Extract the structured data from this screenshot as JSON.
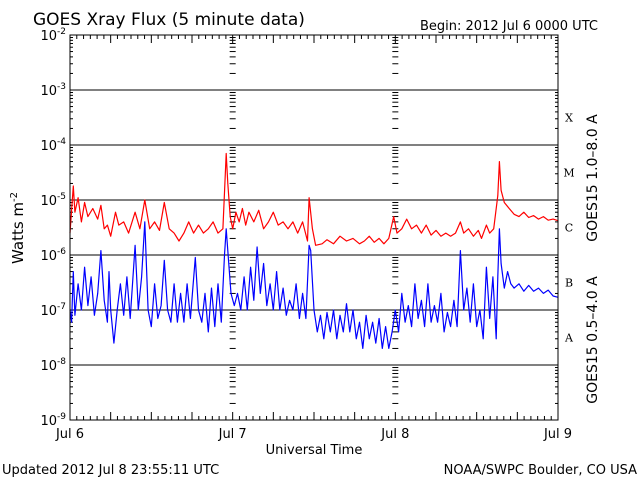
{
  "chart_data": {
    "type": "line",
    "title": "GOES Xray Flux (5 minute data)",
    "begin_label": "Begin:  2012 Jul 6 0000 UTC",
    "xlabel": "Universal Time",
    "ylabel_main": "Watts m",
    "ylabel_exp": "-2",
    "y_scale": "log",
    "ylim_exp": [
      -9,
      -2
    ],
    "y_tick_exps": [
      "-2",
      "-3",
      "-4",
      "-5",
      "-6",
      "-7",
      "-8",
      "-9"
    ],
    "x_range_days": [
      0,
      3
    ],
    "x_ticks": [
      "Jul 6",
      "Jul 7",
      "Jul 8",
      "Jul 9"
    ],
    "grid_lines_exp": [
      -3,
      -4,
      -5,
      -6,
      -7,
      -8
    ],
    "flare_classes": [
      "X",
      "M",
      "C",
      "B",
      "A"
    ],
    "updated": "Updated 2012 Jul  8 23:55:11 UTC",
    "source": "NOAA/SWPC Boulder, CO USA",
    "series": [
      {
        "name": "GOES15 1.0–8.0 A",
        "color": "#ff0000",
        "points": [
          [
            0.0,
            2.5e-06
          ],
          [
            0.02,
            1.8e-05
          ],
          [
            0.03,
            6e-06
          ],
          [
            0.05,
            1.1e-05
          ],
          [
            0.07,
            4e-06
          ],
          [
            0.09,
            9e-06
          ],
          [
            0.11,
            5e-06
          ],
          [
            0.14,
            7e-06
          ],
          [
            0.17,
            4.5e-06
          ],
          [
            0.19,
            8e-06
          ],
          [
            0.21,
            3e-06
          ],
          [
            0.23,
            3.5e-06
          ],
          [
            0.25,
            2.2e-06
          ],
          [
            0.28,
            6e-06
          ],
          [
            0.3,
            3.5e-06
          ],
          [
            0.33,
            4e-06
          ],
          [
            0.36,
            2.5e-06
          ],
          [
            0.4,
            6e-06
          ],
          [
            0.43,
            3e-06
          ],
          [
            0.46,
            1e-05
          ],
          [
            0.49,
            3e-06
          ],
          [
            0.52,
            4e-06
          ],
          [
            0.55,
            2.8e-06
          ],
          [
            0.58,
            9e-06
          ],
          [
            0.61,
            3e-06
          ],
          [
            0.64,
            2.5e-06
          ],
          [
            0.67,
            1.8e-06
          ],
          [
            0.7,
            2.5e-06
          ],
          [
            0.73,
            4e-06
          ],
          [
            0.76,
            2.5e-06
          ],
          [
            0.79,
            3.5e-06
          ],
          [
            0.82,
            2.5e-06
          ],
          [
            0.85,
            3e-06
          ],
          [
            0.88,
            4e-06
          ],
          [
            0.91,
            2.5e-06
          ],
          [
            0.94,
            3e-06
          ],
          [
            0.96,
            7e-05
          ],
          [
            0.97,
            2e-05
          ],
          [
            0.985,
            5e-06
          ],
          [
            1.0,
            3e-06
          ],
          [
            1.02,
            6e-06
          ],
          [
            1.04,
            4e-06
          ],
          [
            1.06,
            7e-06
          ],
          [
            1.08,
            3.5e-06
          ],
          [
            1.1,
            6e-06
          ],
          [
            1.13,
            4e-06
          ],
          [
            1.16,
            6.5e-06
          ],
          [
            1.19,
            3e-06
          ],
          [
            1.22,
            4e-06
          ],
          [
            1.25,
            6e-06
          ],
          [
            1.28,
            3.5e-06
          ],
          [
            1.31,
            4e-06
          ],
          [
            1.34,
            3e-06
          ],
          [
            1.37,
            4e-06
          ],
          [
            1.4,
            2.5e-06
          ],
          [
            1.43,
            4e-06
          ],
          [
            1.46,
            1.8e-06
          ],
          [
            1.47,
            1.1e-05
          ],
          [
            1.49,
            3e-06
          ],
          [
            1.51,
            1.5e-06
          ],
          [
            1.55,
            1.6e-06
          ],
          [
            1.58,
            1.9e-06
          ],
          [
            1.62,
            1.6e-06
          ],
          [
            1.66,
            2.2e-06
          ],
          [
            1.7,
            1.8e-06
          ],
          [
            1.74,
            2e-06
          ],
          [
            1.78,
            1.6e-06
          ],
          [
            1.81,
            1.8e-06
          ],
          [
            1.84,
            2.2e-06
          ],
          [
            1.87,
            1.7e-06
          ],
          [
            1.9,
            2e-06
          ],
          [
            1.93,
            1.6e-06
          ],
          [
            1.96,
            2e-06
          ],
          [
            1.99,
            5e-06
          ],
          [
            2.01,
            2.5e-06
          ],
          [
            2.04,
            3e-06
          ],
          [
            2.07,
            4.5e-06
          ],
          [
            2.1,
            3e-06
          ],
          [
            2.13,
            3.5e-06
          ],
          [
            2.16,
            2.5e-06
          ],
          [
            2.19,
            3.5e-06
          ],
          [
            2.22,
            2.3e-06
          ],
          [
            2.25,
            2.8e-06
          ],
          [
            2.28,
            2.2e-06
          ],
          [
            2.31,
            2.5e-06
          ],
          [
            2.34,
            2.2e-06
          ],
          [
            2.37,
            2.5e-06
          ],
          [
            2.4,
            4e-06
          ],
          [
            2.42,
            2.5e-06
          ],
          [
            2.45,
            3e-06
          ],
          [
            2.48,
            2.2e-06
          ],
          [
            2.51,
            2.8e-06
          ],
          [
            2.53,
            2e-06
          ],
          [
            2.56,
            3.5e-06
          ],
          [
            2.58,
            2.5e-06
          ],
          [
            2.605,
            3e-06
          ],
          [
            2.63,
            1.2e-05
          ],
          [
            2.64,
            5e-05
          ],
          [
            2.65,
            1.5e-05
          ],
          [
            2.67,
            9e-06
          ],
          [
            2.7,
            7e-06
          ],
          [
            2.73,
            5.5e-06
          ],
          [
            2.76,
            5e-06
          ],
          [
            2.79,
            6e-06
          ],
          [
            2.82,
            4.8e-06
          ],
          [
            2.85,
            5.2e-06
          ],
          [
            2.88,
            4.5e-06
          ],
          [
            2.91,
            5e-06
          ],
          [
            2.94,
            4.3e-06
          ],
          [
            2.97,
            4.5e-06
          ],
          [
            3.0,
            4.2e-06
          ]
        ]
      },
      {
        "name": "GOES15 0.5–4.0 A",
        "color": "#0000ff",
        "points": [
          [
            0.0,
            1e-07
          ],
          [
            0.01,
            6e-08
          ],
          [
            0.02,
            5e-07
          ],
          [
            0.03,
            8e-08
          ],
          [
            0.05,
            3e-07
          ],
          [
            0.07,
            1e-07
          ],
          [
            0.09,
            6e-07
          ],
          [
            0.11,
            1.2e-07
          ],
          [
            0.13,
            4e-07
          ],
          [
            0.15,
            8e-08
          ],
          [
            0.17,
            2e-07
          ],
          [
            0.19,
            1.2e-06
          ],
          [
            0.21,
            1.5e-07
          ],
          [
            0.23,
            6e-08
          ],
          [
            0.24,
            5e-07
          ],
          [
            0.25,
            1e-07
          ],
          [
            0.27,
            2.5e-08
          ],
          [
            0.29,
            1e-07
          ],
          [
            0.31,
            3e-07
          ],
          [
            0.33,
            8e-08
          ],
          [
            0.35,
            4e-07
          ],
          [
            0.37,
            7e-08
          ],
          [
            0.4,
            1.5e-06
          ],
          [
            0.42,
            1e-07
          ],
          [
            0.44,
            4e-07
          ],
          [
            0.46,
            4e-06
          ],
          [
            0.48,
            1e-07
          ],
          [
            0.5,
            5e-08
          ],
          [
            0.52,
            3e-07
          ],
          [
            0.54,
            7e-08
          ],
          [
            0.56,
            1.2e-07
          ],
          [
            0.58,
            8e-07
          ],
          [
            0.6,
            1e-07
          ],
          [
            0.62,
            6e-08
          ],
          [
            0.64,
            3e-07
          ],
          [
            0.66,
            6e-08
          ],
          [
            0.68,
            2e-07
          ],
          [
            0.7,
            6e-08
          ],
          [
            0.72,
            3e-07
          ],
          [
            0.74,
            7e-08
          ],
          [
            0.77,
            9e-07
          ],
          [
            0.79,
            1e-07
          ],
          [
            0.81,
            6e-08
          ],
          [
            0.83,
            2e-07
          ],
          [
            0.85,
            4e-08
          ],
          [
            0.87,
            2.5e-07
          ],
          [
            0.89,
            5e-08
          ],
          [
            0.91,
            3e-07
          ],
          [
            0.93,
            6e-08
          ],
          [
            0.95,
            1e-06
          ],
          [
            0.96,
            3e-06
          ],
          [
            0.97,
            1.2e-06
          ],
          [
            0.99,
            2e-07
          ],
          [
            1.01,
            1.2e-07
          ],
          [
            1.03,
            2e-07
          ],
          [
            1.05,
            1e-07
          ],
          [
            1.07,
            4e-07
          ],
          [
            1.09,
            1e-07
          ],
          [
            1.11,
            6e-07
          ],
          [
            1.13,
            1.5e-07
          ],
          [
            1.15,
            1.4e-06
          ],
          [
            1.17,
            2e-07
          ],
          [
            1.19,
            7e-07
          ],
          [
            1.21,
            1.2e-07
          ],
          [
            1.23,
            3e-07
          ],
          [
            1.25,
            1e-07
          ],
          [
            1.27,
            5e-07
          ],
          [
            1.29,
            1e-07
          ],
          [
            1.31,
            2.5e-07
          ],
          [
            1.33,
            8e-08
          ],
          [
            1.35,
            1.5e-07
          ],
          [
            1.37,
            1e-07
          ],
          [
            1.39,
            3e-07
          ],
          [
            1.41,
            7e-08
          ],
          [
            1.43,
            2e-07
          ],
          [
            1.45,
            7e-08
          ],
          [
            1.47,
            1.5e-06
          ],
          [
            1.48,
            1.2e-06
          ],
          [
            1.5,
            1e-07
          ],
          [
            1.52,
            4e-08
          ],
          [
            1.54,
            8e-08
          ],
          [
            1.56,
            3e-08
          ],
          [
            1.58,
            9e-08
          ],
          [
            1.6,
            4e-08
          ],
          [
            1.62,
            1e-07
          ],
          [
            1.64,
            3e-08
          ],
          [
            1.66,
            8e-08
          ],
          [
            1.68,
            4e-08
          ],
          [
            1.7,
            1.3e-07
          ],
          [
            1.72,
            4e-08
          ],
          [
            1.74,
            1e-07
          ],
          [
            1.76,
            3e-08
          ],
          [
            1.78,
            6e-08
          ],
          [
            1.8,
            2e-08
          ],
          [
            1.82,
            8e-08
          ],
          [
            1.84,
            3e-08
          ],
          [
            1.86,
            6e-08
          ],
          [
            1.88,
            2.5e-08
          ],
          [
            1.9,
            7e-08
          ],
          [
            1.92,
            2e-08
          ],
          [
            1.94,
            5e-08
          ],
          [
            1.96,
            2e-08
          ],
          [
            1.98,
            4e-08
          ],
          [
            2.0,
            1e-07
          ],
          [
            2.02,
            4e-08
          ],
          [
            2.04,
            2e-07
          ],
          [
            2.06,
            6e-08
          ],
          [
            2.08,
            1.2e-07
          ],
          [
            2.1,
            5e-08
          ],
          [
            2.12,
            3e-07
          ],
          [
            2.14,
            7e-08
          ],
          [
            2.16,
            1.5e-07
          ],
          [
            2.18,
            5e-08
          ],
          [
            2.2,
            3e-07
          ],
          [
            2.22,
            6e-08
          ],
          [
            2.24,
            1.2e-07
          ],
          [
            2.26,
            6e-08
          ],
          [
            2.28,
            2e-07
          ],
          [
            2.3,
            4e-08
          ],
          [
            2.32,
            9e-08
          ],
          [
            2.34,
            5e-08
          ],
          [
            2.36,
            1.5e-07
          ],
          [
            2.38,
            5e-08
          ],
          [
            2.4,
            1.2e-06
          ],
          [
            2.42,
            1e-07
          ],
          [
            2.44,
            2.5e-07
          ],
          [
            2.46,
            6e-08
          ],
          [
            2.48,
            3e-07
          ],
          [
            2.5,
            5e-08
          ],
          [
            2.52,
            1e-07
          ],
          [
            2.54,
            3e-08
          ],
          [
            2.56,
            6e-07
          ],
          [
            2.58,
            7e-08
          ],
          [
            2.6,
            4e-07
          ],
          [
            2.62,
            3e-08
          ],
          [
            2.63,
            4e-07
          ],
          [
            2.64,
            3e-06
          ],
          [
            2.65,
            7e-07
          ],
          [
            2.67,
            2.5e-07
          ],
          [
            2.69,
            5e-07
          ],
          [
            2.71,
            3e-07
          ],
          [
            2.73,
            2.5e-07
          ],
          [
            2.76,
            3e-07
          ],
          [
            2.79,
            2.2e-07
          ],
          [
            2.82,
            2.8e-07
          ],
          [
            2.85,
            2.2e-07
          ],
          [
            2.88,
            2.5e-07
          ],
          [
            2.91,
            2e-07
          ],
          [
            2.94,
            2.3e-07
          ],
          [
            2.97,
            1.8e-07
          ],
          [
            3.0,
            1.7e-07
          ]
        ]
      }
    ]
  }
}
